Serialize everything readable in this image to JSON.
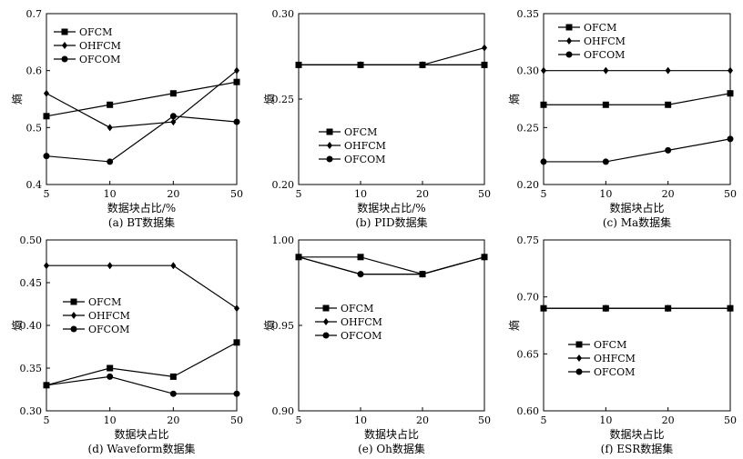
{
  "figure": {
    "colors": {
      "line": "#000000",
      "background": "#ffffff"
    },
    "series_names": [
      "OFCM",
      "OHFCM",
      "OFCOM"
    ]
  },
  "chart_data": [
    {
      "type": "line",
      "caption": "(a) BT数据集",
      "xlabel": "数据块占比/%",
      "ylabel": "熵",
      "categories": [
        "5",
        "10",
        "20",
        "50"
      ],
      "ylim": [
        0.4,
        0.7
      ],
      "yticks": [
        "0.4",
        "0.5",
        "0.6",
        "0.7"
      ],
      "legend_position": "top-left",
      "series": [
        {
          "name": "OFCM",
          "marker": "square",
          "values": [
            0.52,
            0.54,
            0.56,
            0.58
          ]
        },
        {
          "name": "OHFCM",
          "marker": "diamond",
          "values": [
            0.56,
            0.5,
            0.51,
            0.6
          ]
        },
        {
          "name": "OFCOM",
          "marker": "circle",
          "values": [
            0.45,
            0.44,
            0.52,
            0.51
          ]
        }
      ]
    },
    {
      "type": "line",
      "caption": "(b) PID数据集",
      "xlabel": "数据块占比/%",
      "ylabel": "熵",
      "categories": [
        "5",
        "10",
        "20",
        "50"
      ],
      "ylim": [
        0.2,
        0.3
      ],
      "yticks": [
        "0.20",
        "0.25",
        "0.30"
      ],
      "legend_position": "bottom-left",
      "series": [
        {
          "name": "OFCM",
          "marker": "square",
          "values": [
            0.27,
            0.27,
            0.27,
            0.27
          ]
        },
        {
          "name": "OHFCM",
          "marker": "diamond",
          "values": [
            0.27,
            0.27,
            0.27,
            0.28
          ]
        },
        {
          "name": "OFCOM",
          "marker": "circle",
          "values": [
            0.27,
            0.27,
            0.27,
            0.27
          ]
        }
      ]
    },
    {
      "type": "line",
      "caption": "(c) Ma数据集",
      "xlabel": "数据块占比",
      "ylabel": "熵",
      "categories": [
        "5",
        "10",
        "20",
        "50"
      ],
      "ylim": [
        0.2,
        0.35
      ],
      "yticks": [
        "0.20",
        "0.25",
        "0.30",
        "0.35"
      ],
      "legend_position": "top-left",
      "series": [
        {
          "name": "OFCM",
          "marker": "square",
          "values": [
            0.27,
            0.27,
            0.27,
            0.28
          ]
        },
        {
          "name": "OHFCM",
          "marker": "diamond",
          "values": [
            0.3,
            0.3,
            0.3,
            0.3
          ]
        },
        {
          "name": "OFCOM",
          "marker": "circle",
          "values": [
            0.22,
            0.22,
            0.23,
            0.24
          ]
        }
      ]
    },
    {
      "type": "line",
      "caption": "(d) Waveform数据集",
      "xlabel": "数据块占比",
      "ylabel": "熵",
      "categories": [
        "5",
        "10",
        "20",
        "50"
      ],
      "ylim": [
        0.3,
        0.5
      ],
      "yticks": [
        "0.30",
        "0.35",
        "0.40",
        "0.45",
        "0.50"
      ],
      "legend_position": "middle-left",
      "series": [
        {
          "name": "OFCM",
          "marker": "square",
          "values": [
            0.33,
            0.35,
            0.34,
            0.38
          ]
        },
        {
          "name": "OHFCM",
          "marker": "diamond",
          "values": [
            0.47,
            0.47,
            0.47,
            0.42
          ]
        },
        {
          "name": "OFCOM",
          "marker": "circle",
          "values": [
            0.33,
            0.34,
            0.32,
            0.32
          ]
        }
      ]
    },
    {
      "type": "line",
      "caption": "(e) Oh数据集",
      "xlabel": "数据块占比",
      "ylabel": "熵",
      "categories": [
        "5",
        "10",
        "20",
        "50"
      ],
      "ylim": [
        0.9,
        1.0
      ],
      "yticks": [
        "0.90",
        "0.95",
        "1.00"
      ],
      "legend_position": "middle-left",
      "series": [
        {
          "name": "OFCM",
          "marker": "square",
          "values": [
            0.99,
            0.99,
            0.98,
            0.99
          ]
        },
        {
          "name": "OHFCM",
          "marker": "diamond",
          "values": [
            0.99,
            0.98,
            0.98,
            0.99
          ]
        },
        {
          "name": "OFCOM",
          "marker": "circle",
          "values": [
            0.99,
            0.98,
            0.98,
            0.99
          ]
        }
      ]
    },
    {
      "type": "line",
      "caption": "(f) ESR数据集",
      "xlabel": "数据块占比",
      "ylabel": "熵",
      "categories": [
        "5",
        "10",
        "20",
        "50"
      ],
      "ylim": [
        0.6,
        0.75
      ],
      "yticks": [
        "0.60",
        "0.65",
        "0.70",
        "0.75"
      ],
      "legend_position": "bottom-left",
      "series": [
        {
          "name": "OFCM",
          "marker": "square",
          "values": [
            0.69,
            0.69,
            0.69,
            0.69
          ]
        },
        {
          "name": "OHFCM",
          "marker": "diamond",
          "values": [
            0.69,
            0.69,
            0.69,
            0.69
          ]
        },
        {
          "name": "OFCOM",
          "marker": "circle",
          "values": [
            0.69,
            0.69,
            0.69,
            0.69
          ]
        }
      ]
    }
  ]
}
